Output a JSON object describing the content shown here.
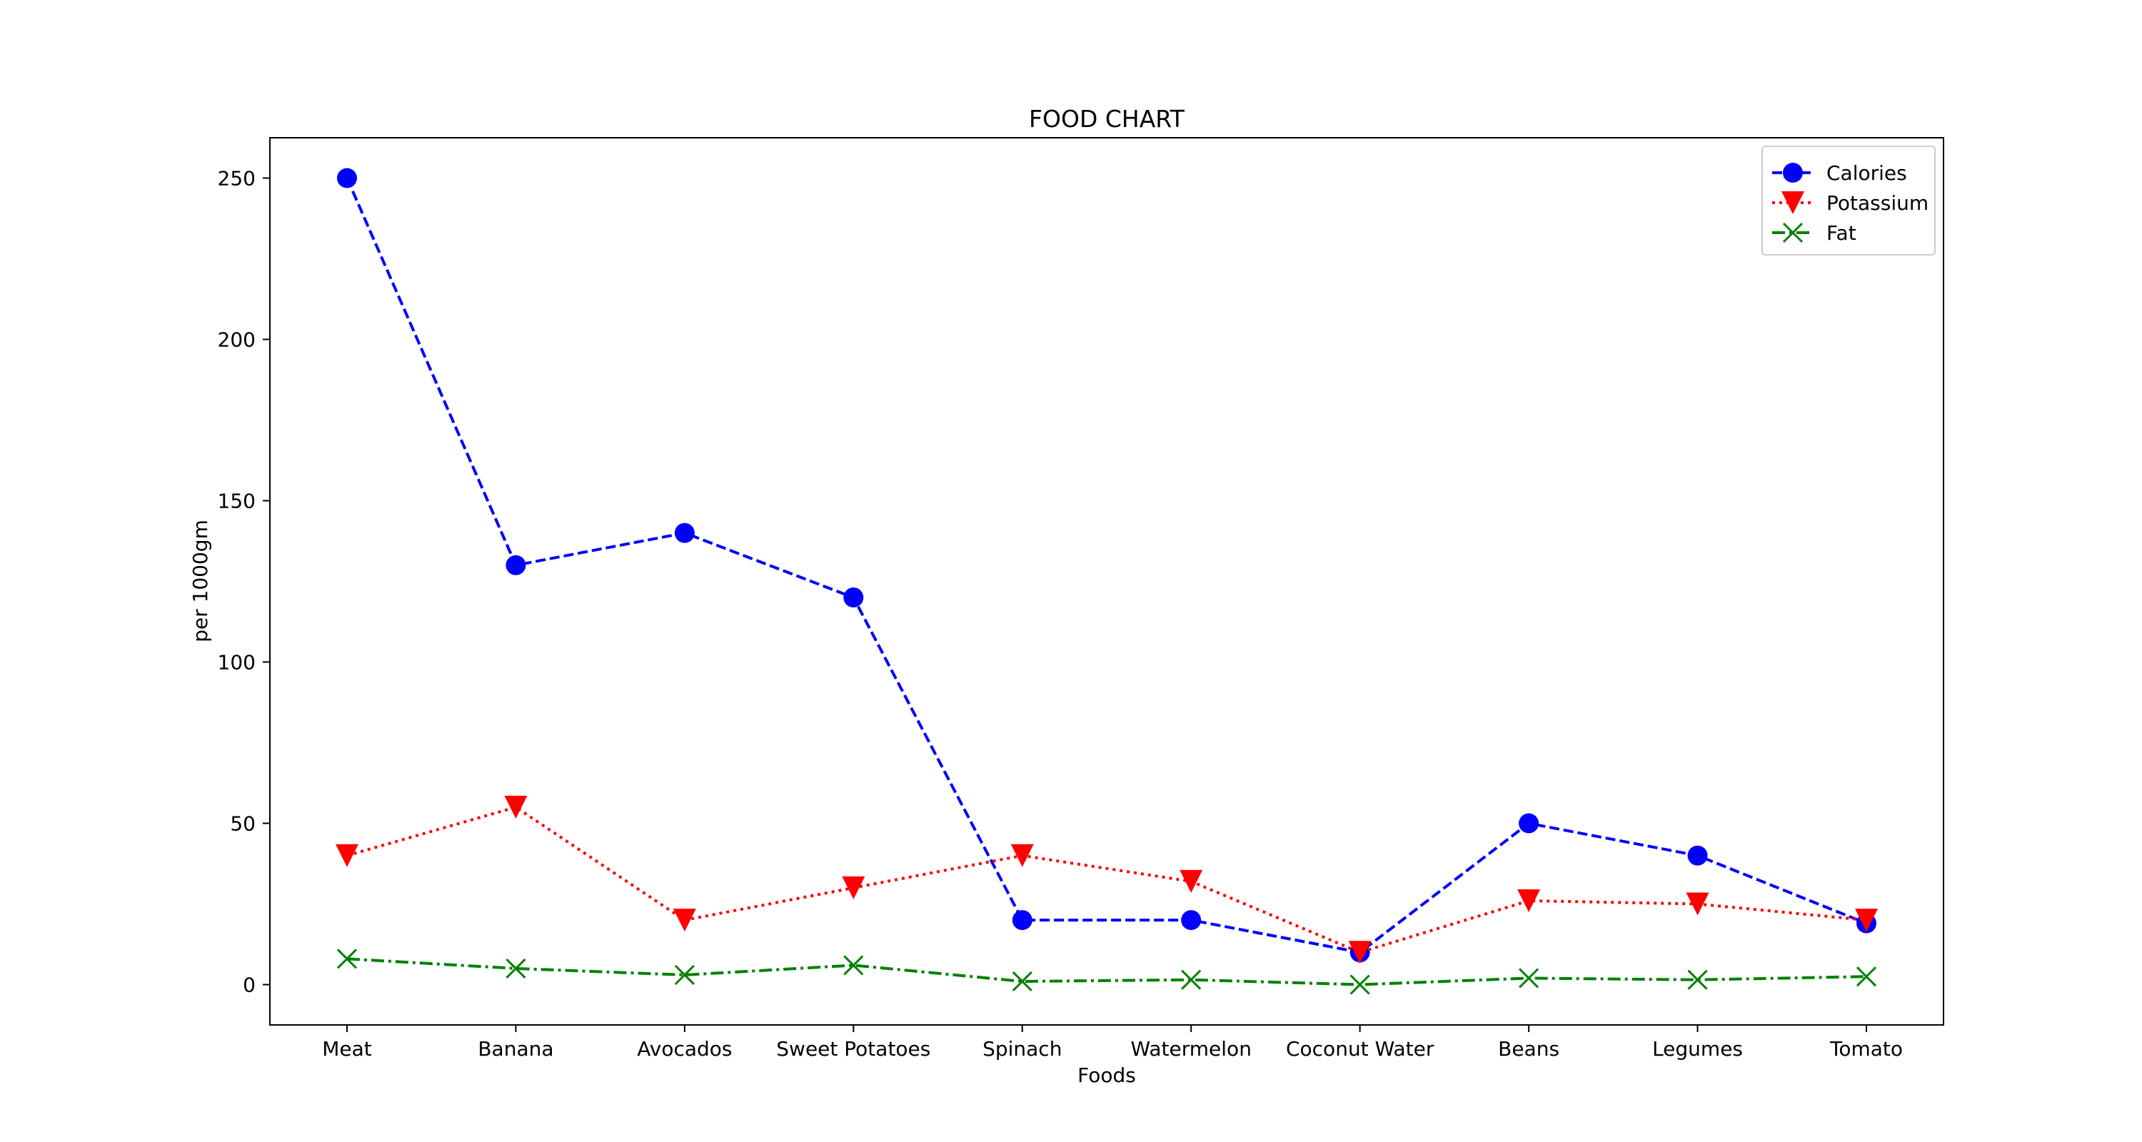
{
  "chart_data": {
    "type": "line",
    "title": "FOOD CHART",
    "xlabel": "Foods",
    "ylabel": "per 1000gm",
    "categories": [
      "Meat",
      "Banana",
      "Avocados",
      "Sweet Potatoes",
      "Spinach",
      "Watermelon",
      "Coconut Water",
      "Beans",
      "Legumes",
      "Tomato"
    ],
    "series": [
      {
        "name": "Calories",
        "values": [
          250,
          130,
          140,
          120,
          20,
          20,
          10,
          50,
          40,
          19
        ],
        "color": "#0000ff",
        "marker": "circle",
        "line_style": "dashed"
      },
      {
        "name": "Potassium",
        "values": [
          40,
          55,
          20,
          30,
          40,
          32,
          10,
          26,
          25,
          20
        ],
        "color": "#ff0000",
        "marker": "triangle-down",
        "line_style": "dotted"
      },
      {
        "name": "Fat",
        "values": [
          8,
          5,
          3,
          6,
          1,
          1.5,
          0,
          2,
          1.5,
          2.5
        ],
        "color": "#008000",
        "marker": "x",
        "line_style": "dash-dot"
      }
    ],
    "yticks": [
      0,
      50,
      100,
      150,
      200,
      250
    ],
    "ylim": [
      -12.5,
      262.5
    ],
    "grid": false,
    "legend": "top-right"
  }
}
